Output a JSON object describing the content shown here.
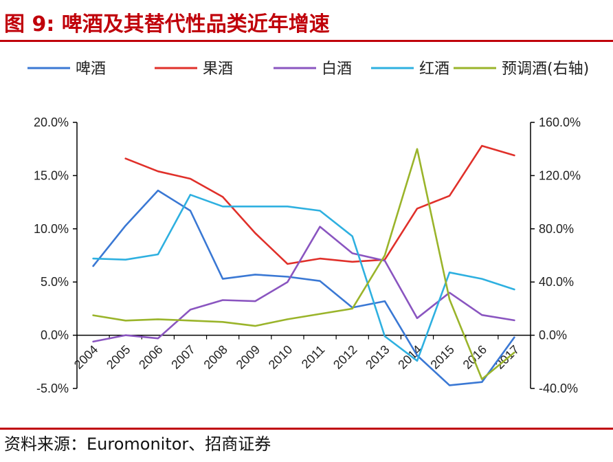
{
  "header": {
    "title": "图 9:  啤酒及其替代性品类近年增速"
  },
  "footer": {
    "source": "资料来源：Euromonitor、招商证券"
  },
  "colors": {
    "title": "#c0000a",
    "beer": "#3a78d4",
    "fruit_wine": "#e0302a",
    "baijiu": "#8a55c0",
    "red_wine": "#2eb0e0",
    "rtd": "#9ab42a"
  },
  "chart_data": {
    "type": "line",
    "title": "啤酒及其替代性品类近年增速",
    "categories": [
      "2004",
      "2005",
      "2006",
      "2007",
      "2008",
      "2009",
      "2010",
      "2011",
      "2012",
      "2013",
      "2014",
      "2015",
      "2016",
      "2017"
    ],
    "left_axis": {
      "min": -5,
      "max": 20,
      "step": 5,
      "tick_labels": [
        "-5.0%",
        "0.0%",
        "5.0%",
        "10.0%",
        "15.0%",
        "20.0%"
      ]
    },
    "right_axis": {
      "min": -40,
      "max": 160,
      "step": 40,
      "tick_labels": [
        "-40.0%",
        "0.0%",
        "40.0%",
        "80.0%",
        "120.0%",
        "160.0%"
      ]
    },
    "series": [
      {
        "name": "啤酒",
        "axis": "left",
        "color": "#3a78d4",
        "values": [
          6.5,
          10.3,
          13.6,
          11.7,
          5.3,
          5.7,
          5.5,
          5.1,
          2.6,
          3.2,
          -1.9,
          -4.7,
          -4.4,
          -0.2
        ]
      },
      {
        "name": "果酒",
        "axis": "left",
        "color": "#e0302a",
        "values": [
          null,
          16.6,
          15.4,
          14.7,
          13.0,
          9.6,
          6.7,
          7.2,
          6.9,
          7.1,
          11.9,
          13.1,
          17.8,
          16.9
        ]
      },
      {
        "name": "白酒",
        "axis": "left",
        "color": "#8a55c0",
        "values": [
          -0.6,
          0.0,
          -0.3,
          2.4,
          3.3,
          3.2,
          5.0,
          10.2,
          7.7,
          7.0,
          1.6,
          4.0,
          1.9,
          1.4
        ]
      },
      {
        "name": "红酒",
        "axis": "left",
        "color": "#2eb0e0",
        "values": [
          7.2,
          7.1,
          7.6,
          13.2,
          12.1,
          12.1,
          12.1,
          11.7,
          9.3,
          -0.1,
          -2.4,
          5.9,
          5.3,
          4.3
        ]
      },
      {
        "name": "预调酒(右轴)",
        "axis": "right",
        "color": "#9ab42a",
        "values": [
          15,
          11,
          12,
          11,
          10,
          7,
          12,
          16,
          20,
          60,
          140,
          27,
          -33,
          -13
        ]
      }
    ]
  }
}
